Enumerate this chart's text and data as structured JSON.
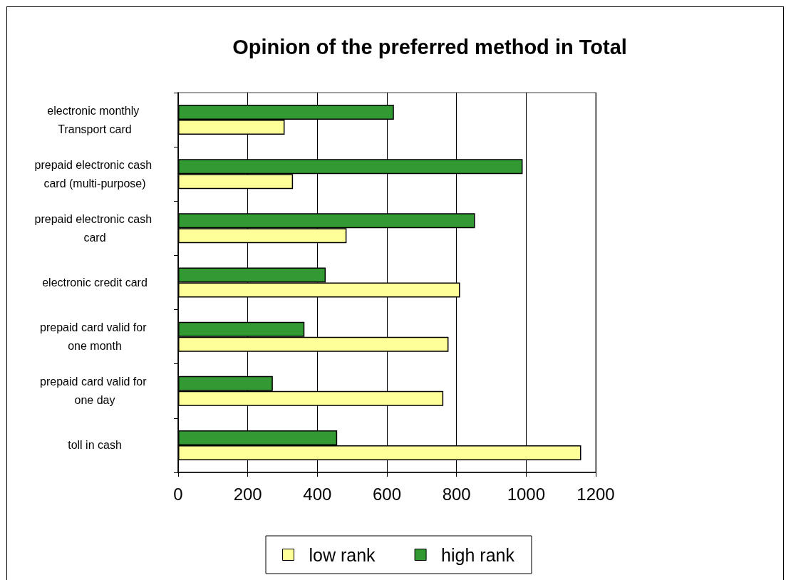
{
  "chart_data": {
    "type": "bar",
    "orientation": "horizontal",
    "title": "Opinion of the preferred method in Total",
    "categories": [
      "electronic monthly Transport card",
      "prepaid electronic cash card (multi-purpose)",
      "prepaid electronic cash card",
      "electronic credit card",
      "prepaid card valid for one month",
      "prepaid card valid for one day",
      "toll in cash"
    ],
    "series": [
      {
        "name": "low rank",
        "color": "#ffff99",
        "values": [
          306,
          330,
          484,
          810,
          777,
          762,
          1158
        ]
      },
      {
        "name": "high rank",
        "color": "#339933",
        "values": [
          620,
          990,
          853,
          424,
          363,
          272,
          457
        ]
      }
    ],
    "xlim": [
      0,
      1200
    ],
    "xticks": [
      0,
      200,
      400,
      600,
      800,
      1000,
      1200
    ],
    "grid": "x",
    "legend": "bottom"
  }
}
